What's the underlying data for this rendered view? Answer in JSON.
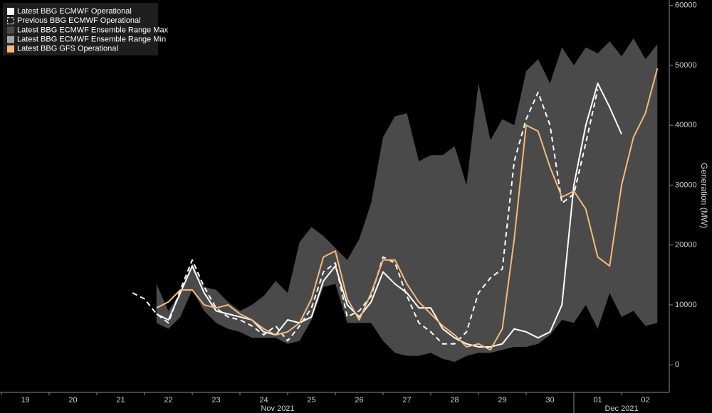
{
  "chart_data": {
    "type": "line",
    "y_label": "Generation (MW)",
    "categories": [
      null,
      null,
      "19",
      null,
      null,
      null,
      "20",
      null,
      null,
      null,
      "21",
      null,
      null,
      null,
      "22",
      null,
      null,
      null,
      "23",
      null,
      null,
      null,
      "24",
      null,
      null,
      null,
      "25",
      null,
      null,
      null,
      "26",
      null,
      null,
      null,
      "27",
      null,
      null,
      null,
      "28",
      null,
      null,
      null,
      "29",
      null,
      null,
      null,
      "30",
      null,
      null,
      null,
      "01",
      null,
      null,
      null,
      "02",
      null
    ],
    "x_groups": [
      "Nov 2021",
      "Dec 2021"
    ],
    "series": [
      {
        "name": "Latest BBG ECMWF Operational",
        "color": "#ffffff",
        "style": "solid",
        "values": [
          null,
          null,
          null,
          null,
          null,
          null,
          null,
          null,
          null,
          null,
          null,
          null,
          null,
          8500,
          7500,
          12000,
          16500,
          12000,
          9000,
          8500,
          8000,
          7500,
          5500,
          5000,
          7500,
          7000,
          8000,
          14000,
          16500,
          10000,
          8000,
          10500,
          15500,
          13500,
          12000,
          9500,
          9500,
          6000,
          4500,
          3500,
          3000,
          3000,
          3500,
          6000,
          5500,
          4500,
          5500,
          10000,
          30000,
          40000,
          47000,
          43000,
          38500,
          null,
          null,
          null
        ]
      },
      {
        "name": "Previous BBG ECMWF Operational",
        "color": "#ffffff",
        "style": "dashed",
        "values": [
          null,
          null,
          null,
          null,
          null,
          null,
          null,
          null,
          null,
          null,
          null,
          12000,
          11000,
          8500,
          7000,
          12500,
          17500,
          13000,
          9500,
          8000,
          7500,
          6500,
          5000,
          6500,
          4000,
          6500,
          9500,
          15500,
          17000,
          8000,
          9000,
          11500,
          18000,
          17000,
          11500,
          7000,
          5500,
          3500,
          3500,
          5500,
          12000,
          14500,
          16000,
          34000,
          41000,
          45500,
          40000,
          27000,
          28500,
          37000,
          46000,
          null,
          null,
          null,
          null,
          null
        ]
      },
      {
        "name": "Latest BBG ECMWF Ensemble Range Max",
        "color": "#4a4a4a",
        "style": "range-max",
        "values": [
          null,
          null,
          null,
          null,
          null,
          null,
          null,
          null,
          null,
          null,
          null,
          null,
          null,
          13500,
          9000,
          12000,
          17000,
          13000,
          12500,
          10500,
          9000,
          10000,
          11500,
          14000,
          12000,
          20500,
          23000,
          21500,
          19500,
          17500,
          21000,
          27000,
          38000,
          41500,
          42000,
          34000,
          35000,
          35000,
          36500,
          30000,
          47000,
          37500,
          41000,
          40000,
          49000,
          51000,
          47000,
          53000,
          50000,
          53000,
          52000,
          54000,
          51500,
          54500,
          51000,
          53500
        ]
      },
      {
        "name": "Latest BBG ECMWF Ensemble Range Min",
        "color": "#a6a6a6",
        "style": "range-min",
        "values": [
          null,
          null,
          null,
          null,
          null,
          null,
          null,
          null,
          null,
          null,
          null,
          null,
          null,
          7000,
          6000,
          8000,
          12500,
          9000,
          7000,
          6000,
          5500,
          4500,
          4500,
          4500,
          3500,
          4000,
          7500,
          13000,
          13500,
          7000,
          7000,
          7000,
          4000,
          2000,
          1500,
          1500,
          2000,
          1000,
          500,
          1500,
          2000,
          2000,
          2500,
          3000,
          3000,
          3500,
          5000,
          7500,
          7000,
          10000,
          6000,
          12000,
          8000,
          9000,
          6500,
          7000
        ]
      },
      {
        "name": "Latest BBG GFS Operational",
        "color": "#f5b97a",
        "style": "solid",
        "values": [
          null,
          null,
          null,
          null,
          null,
          null,
          null,
          null,
          null,
          null,
          null,
          null,
          null,
          9500,
          10500,
          12500,
          12500,
          10000,
          9500,
          10000,
          8500,
          7500,
          6000,
          5000,
          5500,
          7000,
          11000,
          18000,
          19000,
          11000,
          7500,
          12000,
          17500,
          17500,
          13500,
          10500,
          8500,
          6500,
          5000,
          3000,
          3500,
          2500,
          6000,
          21000,
          40000,
          39000,
          33000,
          28000,
          29000,
          26000,
          18000,
          16500,
          30000,
          38000,
          42000,
          49500
        ]
      }
    ],
    "ylim": [
      -4600,
      60900
    ],
    "yticks": [
      0,
      10000,
      20000,
      30000,
      40000,
      50000,
      60000
    ],
    "y_axis_side": "right",
    "legend": "top-left"
  }
}
